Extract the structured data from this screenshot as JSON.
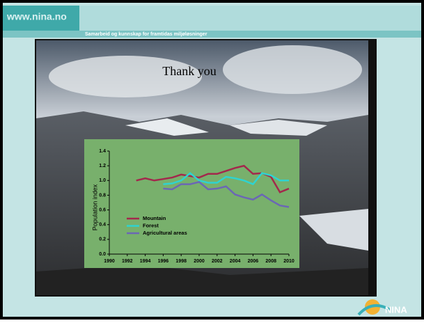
{
  "header": {
    "site": "www.nina.no",
    "tagline": "Samarbeid og kunnskap for framtidas miljøløsninger"
  },
  "slide_title": "Thank you",
  "logo": "NINA",
  "chart_data": {
    "type": "line",
    "y_label": "Population index",
    "x": [
      1993,
      1994,
      1995,
      1996,
      1997,
      1998,
      1999,
      2000,
      2001,
      2002,
      2003,
      2004,
      2005,
      2006,
      2007,
      2008,
      2009,
      2010
    ],
    "series": [
      {
        "name": "Mountain",
        "color": "#a3284c",
        "values": [
          1.0,
          1.03,
          1.0,
          1.02,
          1.04,
          1.08,
          1.06,
          1.04,
          1.09,
          1.09,
          1.13,
          1.17,
          1.2,
          1.09,
          1.1,
          1.05,
          0.84,
          0.89
        ]
      },
      {
        "name": "Forest",
        "color": "#2fd3d0",
        "values": [
          null,
          null,
          null,
          0.95,
          0.96,
          1.0,
          1.1,
          1.0,
          0.97,
          0.97,
          1.05,
          1.03,
          1.0,
          0.95,
          1.1,
          1.07,
          1.0,
          1.0
        ]
      },
      {
        "name": "Agricultural areas",
        "color": "#6b67b5",
        "values": [
          null,
          null,
          null,
          0.89,
          0.88,
          0.95,
          0.95,
          0.98,
          0.88,
          0.89,
          0.92,
          0.81,
          0.77,
          0.74,
          0.81,
          0.73,
          0.66,
          0.64
        ]
      }
    ],
    "xlim": [
      1990,
      2010
    ],
    "xticks": [
      1990,
      1992,
      1994,
      1996,
      1998,
      2000,
      2002,
      2004,
      2006,
      2008,
      2010
    ],
    "ylim": [
      0,
      1.4
    ],
    "yticks": [
      {
        "value": 0,
        "label": "0.0"
      },
      0.2,
      0.4,
      0.6,
      0.8,
      {
        "value": 1,
        "label": "1.0"
      },
      1.2,
      1.4
    ]
  }
}
